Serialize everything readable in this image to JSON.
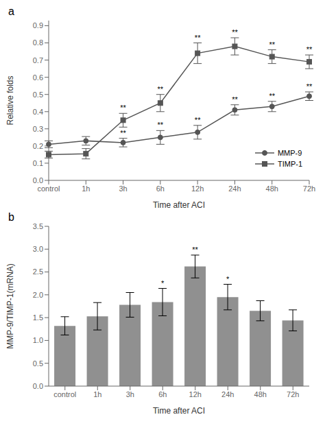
{
  "chart_data": [
    {
      "type": "line",
      "title": "a",
      "x_label": "Time after ACI",
      "y_label": "Relative folds",
      "categories": [
        "control",
        "1h",
        "3h",
        "6h",
        "12h",
        "24h",
        "48h",
        "72h"
      ],
      "series": [
        {
          "name": "MMP-9",
          "color": "#555555",
          "marker": "circle",
          "values": [
            0.21,
            0.23,
            0.22,
            0.25,
            0.28,
            0.41,
            0.43,
            0.49
          ],
          "errors": [
            0.02,
            0.025,
            0.025,
            0.04,
            0.04,
            0.03,
            0.03,
            0.025
          ],
          "annotations": [
            null,
            null,
            "**",
            "**",
            "**",
            "**",
            "**",
            "**"
          ]
        },
        {
          "name": "TIMP-1",
          "color": "#555555",
          "marker": "square",
          "values": [
            0.15,
            0.155,
            0.35,
            0.45,
            0.74,
            0.78,
            0.72,
            0.69
          ],
          "errors": [
            0.02,
            0.03,
            0.04,
            0.05,
            0.06,
            0.05,
            0.04,
            0.04
          ],
          "annotations": [
            null,
            null,
            "**",
            "**",
            "**",
            "**",
            "**",
            "**"
          ]
        }
      ],
      "ylim": [
        0,
        0.93
      ],
      "yticks": [
        {
          "value": 0,
          "label": "0.0"
        },
        0.1,
        0.2,
        0.3,
        0.4,
        0.5,
        0.6,
        0.7,
        0.8,
        0.9
      ],
      "legend": "lower right",
      "grid": false
    },
    {
      "type": "bar",
      "title": "b",
      "x_label": "Time after ACI",
      "y_label": "MMP-9/TIMP-1(mRNA)",
      "categories": [
        "control",
        "1h",
        "3h",
        "6h",
        "12h",
        "24h",
        "48h",
        "72h"
      ],
      "values": [
        1.32,
        1.53,
        1.78,
        1.84,
        2.62,
        1.95,
        1.65,
        1.44
      ],
      "errors": [
        0.2,
        0.3,
        0.27,
        0.3,
        0.25,
        0.28,
        0.22,
        0.23
      ],
      "annotations": [
        null,
        null,
        null,
        "*",
        "**",
        "*",
        null,
        null
      ],
      "color": "#909090",
      "ylim": [
        0,
        3.5
      ],
      "yticks": [
        {
          "value": 0,
          "label": "0.0"
        },
        0.5,
        {
          "value": 1,
          "label": "1.0"
        },
        1.5,
        {
          "value": 2,
          "label": "2.0"
        },
        2.5,
        {
          "value": 3,
          "label": "3.0"
        },
        3.5
      ],
      "grid": false
    }
  ]
}
